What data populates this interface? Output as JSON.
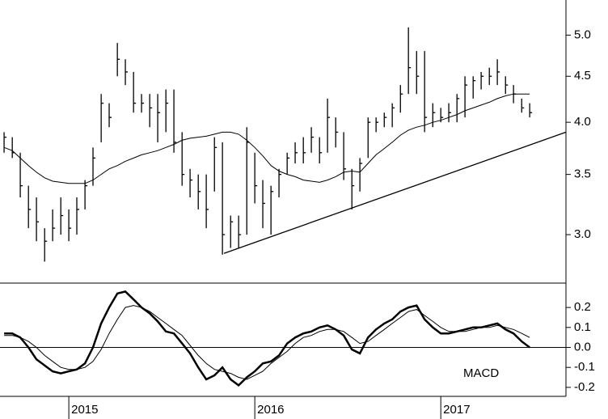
{
  "chart_data": [
    {
      "type": "ohlc",
      "log_scale": true,
      "color": "#000000",
      "x": [
        2014.652,
        2014.696,
        2014.739,
        2014.783,
        2014.826,
        2014.87,
        2014.913,
        2014.957,
        2015.0,
        2015.043,
        2015.087,
        2015.13,
        2015.174,
        2015.217,
        2015.261,
        2015.304,
        2015.348,
        2015.391,
        2015.435,
        2015.478,
        2015.522,
        2015.565,
        2015.609,
        2015.652,
        2015.696,
        2015.739,
        2015.783,
        2015.826,
        2015.87,
        2015.913,
        2015.957,
        2016.0,
        2016.043,
        2016.087,
        2016.13,
        2016.174,
        2016.217,
        2016.261,
        2016.304,
        2016.348,
        2016.391,
        2016.435,
        2016.478,
        2016.522,
        2016.565,
        2016.609,
        2016.652,
        2016.696,
        2016.739,
        2016.783,
        2016.826,
        2016.87,
        2016.913,
        2016.957,
        2017.0,
        2017.043,
        2017.087,
        2017.13,
        2017.174,
        2017.217,
        2017.261,
        2017.304,
        2017.348,
        2017.391,
        2017.435,
        2017.478
      ],
      "high": [
        3.9,
        3.85,
        3.7,
        3.4,
        3.3,
        3.05,
        3.2,
        3.3,
        3.2,
        3.3,
        3.45,
        3.75,
        4.3,
        4.2,
        4.9,
        4.7,
        4.55,
        4.3,
        4.3,
        4.3,
        4.35,
        4.35,
        3.9,
        3.55,
        3.5,
        3.5,
        3.85,
        3.8,
        3.15,
        3.15,
        3.95,
        3.7,
        3.45,
        3.4,
        3.55,
        3.7,
        3.8,
        3.85,
        3.95,
        3.85,
        4.25,
        4.05,
        3.9,
        3.55,
        3.65,
        4.05,
        4.05,
        4.1,
        4.2,
        4.4,
        5.1,
        4.8,
        4.8,
        4.2,
        4.15,
        4.2,
        4.3,
        4.5,
        4.5,
        4.55,
        4.6,
        4.7,
        4.5,
        4.4,
        4.25,
        4.2
      ],
      "low": [
        3.7,
        3.65,
        3.3,
        3.05,
        2.95,
        2.8,
        2.95,
        3.0,
        2.95,
        3.0,
        3.2,
        3.4,
        3.8,
        3.95,
        4.5,
        4.4,
        4.1,
        4.1,
        3.95,
        3.8,
        3.9,
        3.7,
        3.4,
        3.3,
        3.2,
        3.05,
        3.35,
        2.85,
        2.9,
        2.9,
        3.0,
        3.25,
        3.05,
        3.0,
        3.3,
        3.5,
        3.6,
        3.6,
        3.7,
        3.6,
        3.7,
        3.75,
        3.45,
        3.2,
        3.35,
        3.65,
        3.9,
        3.95,
        3.95,
        4.1,
        4.3,
        4.3,
        3.9,
        3.95,
        4.0,
        4.0,
        4.0,
        4.05,
        4.25,
        4.35,
        4.4,
        4.4,
        4.3,
        4.2,
        4.1,
        4.05
      ],
      "close": [
        3.85,
        3.7,
        3.4,
        3.2,
        3.1,
        2.95,
        3.05,
        3.15,
        3.05,
        3.2,
        3.4,
        3.65,
        4.2,
        4.05,
        4.7,
        4.55,
        4.2,
        4.2,
        4.15,
        4.1,
        4.2,
        3.8,
        3.5,
        3.45,
        3.35,
        3.2,
        3.75,
        3.0,
        3.1,
        3.0,
        3.8,
        3.4,
        3.25,
        3.35,
        3.5,
        3.65,
        3.7,
        3.7,
        3.85,
        3.7,
        4.05,
        3.9,
        3.55,
        3.4,
        3.6,
        4.0,
        4.0,
        4.05,
        4.15,
        4.3,
        4.6,
        4.5,
        4.05,
        4.1,
        4.05,
        4.1,
        4.25,
        4.4,
        4.45,
        4.5,
        4.5,
        4.55,
        4.4,
        4.3,
        4.15,
        4.1
      ],
      "moving_average": [
        3.75,
        3.72,
        3.65,
        3.58,
        3.52,
        3.47,
        3.44,
        3.43,
        3.42,
        3.42,
        3.42,
        3.45,
        3.5,
        3.55,
        3.58,
        3.62,
        3.65,
        3.68,
        3.7,
        3.72,
        3.75,
        3.78,
        3.82,
        3.84,
        3.85,
        3.86,
        3.88,
        3.9,
        3.9,
        3.88,
        3.82,
        3.75,
        3.67,
        3.58,
        3.53,
        3.5,
        3.48,
        3.45,
        3.44,
        3.43,
        3.45,
        3.48,
        3.52,
        3.53,
        3.52,
        3.6,
        3.68,
        3.74,
        3.8,
        3.87,
        3.92,
        3.95,
        3.97,
        4.0,
        4.02,
        4.05,
        4.08,
        4.12,
        4.15,
        4.18,
        4.21,
        4.25,
        4.28,
        4.3,
        4.3,
        4.3
      ],
      "trendline": {
        "x": [
          2015.834,
          2017.673
        ],
        "values": [
          2.86,
          3.9
        ]
      },
      "xlim": [
        2014.63,
        2017.673
      ],
      "ylim": [
        2.65,
        5.47
      ],
      "yticks": [
        {
          "value": 3,
          "label": "3.0"
        },
        {
          "value": 3.5,
          "label": "3.5"
        },
        {
          "value": 4,
          "label": "4.0"
        },
        {
          "value": 4.5,
          "label": "4.5"
        },
        {
          "value": 5,
          "label": "5.0"
        }
      ]
    },
    {
      "type": "line",
      "title": "MACD",
      "x": [
        2014.652,
        2014.696,
        2014.739,
        2014.783,
        2014.826,
        2014.87,
        2014.913,
        2014.957,
        2015.0,
        2015.043,
        2015.087,
        2015.13,
        2015.174,
        2015.217,
        2015.261,
        2015.304,
        2015.348,
        2015.391,
        2015.435,
        2015.478,
        2015.522,
        2015.565,
        2015.609,
        2015.652,
        2015.696,
        2015.739,
        2015.783,
        2015.826,
        2015.87,
        2015.913,
        2015.957,
        2016.0,
        2016.043,
        2016.087,
        2016.13,
        2016.174,
        2016.217,
        2016.261,
        2016.304,
        2016.348,
        2016.391,
        2016.435,
        2016.478,
        2016.522,
        2016.565,
        2016.609,
        2016.652,
        2016.696,
        2016.739,
        2016.783,
        2016.826,
        2016.87,
        2016.913,
        2016.957,
        2017.0,
        2017.043,
        2017.087,
        2017.13,
        2017.174,
        2017.217,
        2017.261,
        2017.304,
        2017.348,
        2017.391,
        2017.435,
        2017.478
      ],
      "series": [
        {
          "color": "#000000",
          "width": 2.5,
          "values": [
            0.07,
            0.07,
            0.05,
            0.0,
            -0.06,
            -0.09,
            -0.12,
            -0.13,
            -0.12,
            -0.11,
            -0.08,
            0.0,
            0.12,
            0.2,
            0.27,
            0.28,
            0.24,
            0.2,
            0.17,
            0.13,
            0.08,
            0.07,
            0.02,
            -0.03,
            -0.1,
            -0.16,
            -0.14,
            -0.1,
            -0.16,
            -0.19,
            -0.15,
            -0.12,
            -0.08,
            -0.07,
            -0.04,
            0.02,
            0.05,
            0.07,
            0.08,
            0.1,
            0.11,
            0.09,
            0.06,
            -0.01,
            -0.03,
            0.05,
            0.09,
            0.12,
            0.14,
            0.18,
            0.2,
            0.21,
            0.14,
            0.1,
            0.07,
            0.07,
            0.08,
            0.09,
            0.1,
            0.1,
            0.11,
            0.12,
            0.09,
            0.07,
            0.03,
            0.0
          ]
        },
        {
          "color": "#000000",
          "width": 1,
          "values": [
            0.06,
            0.06,
            0.05,
            0.03,
            0.0,
            -0.04,
            -0.07,
            -0.1,
            -0.11,
            -0.11,
            -0.1,
            -0.07,
            -0.01,
            0.07,
            0.14,
            0.2,
            0.21,
            0.2,
            0.18,
            0.15,
            0.12,
            0.09,
            0.06,
            0.01,
            -0.04,
            -0.08,
            -0.11,
            -0.12,
            -0.13,
            -0.15,
            -0.16,
            -0.14,
            -0.12,
            -0.08,
            -0.05,
            -0.02,
            0.02,
            0.05,
            0.06,
            0.08,
            0.09,
            0.09,
            0.08,
            0.05,
            0.02,
            0.03,
            0.06,
            0.09,
            0.12,
            0.15,
            0.18,
            0.19,
            0.16,
            0.13,
            0.1,
            0.08,
            0.08,
            0.08,
            0.09,
            0.1,
            0.1,
            0.11,
            0.1,
            0.09,
            0.07,
            0.05
          ]
        }
      ],
      "xlim": [
        2014.63,
        2017.673
      ],
      "ylim": [
        -0.245,
        0.322
      ],
      "yticks": [
        0.2,
        0.1,
        {
          "value": 0,
          "label": "0.0"
        },
        -0.1,
        -0.2
      ],
      "xticks": [
        2015,
        2016,
        2017
      ]
    }
  ]
}
